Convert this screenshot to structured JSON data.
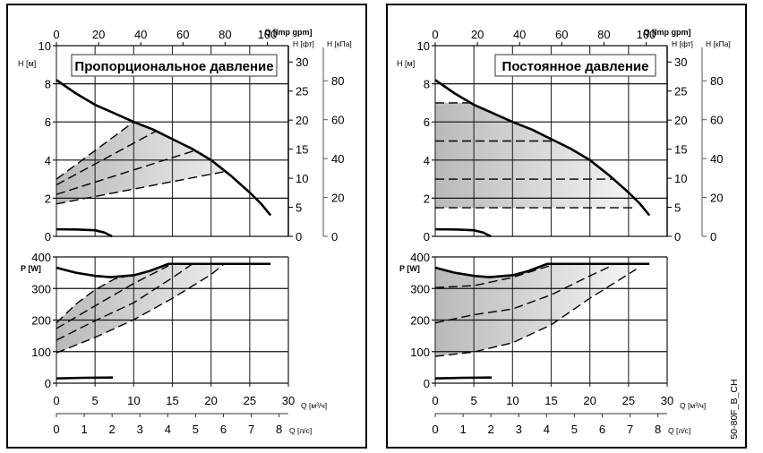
{
  "figure_label": "50-80F_B_CH",
  "chart_data": [
    {
      "type": "line",
      "mode": "proportional",
      "title": "Пропорциональное давление",
      "grid": true,
      "legend": "none",
      "gpm_axis": {
        "label": "Q [Imp gpm]",
        "ticks": [
          0,
          20,
          40,
          60,
          80,
          100
        ]
      },
      "flow_axis": {
        "label": "Q [м³/ч]",
        "xlim": [
          0,
          30
        ],
        "ticks": [
          0,
          5,
          10,
          15,
          20,
          25,
          30
        ]
      },
      "flow_ls_axis": {
        "label": "Q [л/с]",
        "ticks": [
          0,
          1,
          2,
          3,
          4,
          5,
          6,
          7,
          8
        ]
      },
      "head": {
        "ylabel": "H [м]",
        "ylim": [
          0,
          10
        ],
        "yticks": [
          0,
          2,
          4,
          6,
          8,
          10
        ],
        "ft_axis": {
          "label": "H [фт]",
          "ticks": [
            0,
            5,
            10,
            15,
            20,
            25,
            30
          ]
        },
        "kpa_axis": {
          "label": "H [кПа]",
          "ticks": [
            0,
            20,
            40,
            60,
            80
          ]
        },
        "operating_area": [
          [
            0,
            3.0
          ],
          [
            10,
            6.0
          ],
          [
            12.5,
            5.6
          ],
          [
            15,
            5.1
          ],
          [
            17.5,
            4.6
          ],
          [
            20,
            4.0
          ],
          [
            21.8,
            3.4
          ],
          [
            0,
            1.7
          ]
        ],
        "series": [
          {
            "name": "max-curve",
            "style": "solid",
            "points": [
              [
                0,
                8.2
              ],
              [
                2.5,
                7.5
              ],
              [
                5,
                6.9
              ],
              [
                7.5,
                6.45
              ],
              [
                10,
                6.0
              ],
              [
                12.5,
                5.6
              ],
              [
                15,
                5.1
              ],
              [
                17.5,
                4.6
              ],
              [
                20,
                4.0
              ],
              [
                22.5,
                3.2
              ],
              [
                25,
                2.3
              ],
              [
                26.5,
                1.7
              ],
              [
                27.7,
                1.1
              ]
            ]
          },
          {
            "name": "min-curve",
            "style": "solid",
            "points": [
              [
                0,
                0.37
              ],
              [
                2.5,
                0.36
              ],
              [
                5,
                0.32
              ],
              [
                6.2,
                0.2
              ],
              [
                7.2,
                0
              ]
            ]
          },
          {
            "name": "control-curve-1",
            "style": "dashed",
            "points": [
              [
                0,
                3.0
              ],
              [
                10,
                6.0
              ]
            ]
          },
          {
            "name": "control-curve-2",
            "style": "dashed",
            "points": [
              [
                0,
                2.7
              ],
              [
                12.8,
                5.5
              ]
            ]
          },
          {
            "name": "control-curve-3",
            "style": "dashed",
            "points": [
              [
                0,
                2.2
              ],
              [
                17.9,
                4.5
              ]
            ]
          },
          {
            "name": "control-curve-4",
            "style": "dashed",
            "points": [
              [
                0,
                1.7
              ],
              [
                21.8,
                3.4
              ]
            ]
          }
        ]
      },
      "power": {
        "ylabel": "P [W]",
        "ylim": [
          0,
          400
        ],
        "yticks": [
          0,
          100,
          200,
          300,
          400
        ],
        "operating_area": [
          [
            0,
            191
          ],
          [
            2.5,
            250
          ],
          [
            5,
            296
          ],
          [
            7.5,
            330
          ],
          [
            10,
            344
          ],
          [
            12,
            355
          ],
          [
            14.5,
            378
          ],
          [
            21.7,
            378
          ],
          [
            20,
            344
          ],
          [
            15,
            269
          ],
          [
            10,
            201
          ],
          [
            5,
            145
          ],
          [
            0,
            96
          ]
        ],
        "series": [
          {
            "name": "max-curve",
            "style": "solid",
            "points": [
              [
                0,
                366
              ],
              [
                2.5,
                350
              ],
              [
                5,
                340
              ],
              [
                7,
                336
              ],
              [
                10,
                342
              ],
              [
                12,
                355
              ],
              [
                14.5,
                378
              ],
              [
                27.7,
                378
              ]
            ]
          },
          {
            "name": "min-curve",
            "style": "solid",
            "points": [
              [
                0,
                15
              ],
              [
                3.5,
                17
              ],
              [
                7.3,
                18
              ]
            ]
          },
          {
            "name": "control-curve-1",
            "style": "dashed",
            "points": [
              [
                0,
                191
              ],
              [
                2.5,
                250
              ],
              [
                5,
                296
              ],
              [
                7.5,
                330
              ],
              [
                10,
                344
              ]
            ]
          },
          {
            "name": "control-curve-2",
            "style": "dashed",
            "points": [
              [
                0,
                173
              ],
              [
                5,
                245
              ],
              [
                10,
                316
              ],
              [
                14.5,
                372
              ]
            ]
          },
          {
            "name": "control-curve-3",
            "style": "dashed",
            "points": [
              [
                0,
                136
              ],
              [
                5,
                198
              ],
              [
                10,
                255
              ],
              [
                15,
                334
              ],
              [
                17.6,
                378
              ]
            ]
          },
          {
            "name": "control-curve-4",
            "style": "dashed",
            "points": [
              [
                0,
                96
              ],
              [
                5,
                145
              ],
              [
                10,
                201
              ],
              [
                15,
                269
              ],
              [
                20,
                344
              ],
              [
                21.7,
                378
              ]
            ]
          }
        ]
      }
    },
    {
      "type": "line",
      "mode": "constant",
      "title": "Постоянное давление",
      "grid": true,
      "legend": "none",
      "gpm_axis": {
        "label": "Q [Imp gpm]",
        "ticks": [
          0,
          20,
          40,
          60,
          80,
          100
        ]
      },
      "flow_axis": {
        "label": "Q [м³/ч]",
        "xlim": [
          0,
          30
        ],
        "ticks": [
          0,
          5,
          10,
          15,
          20,
          25,
          30
        ]
      },
      "flow_ls_axis": {
        "label": "Q [л/с]",
        "ticks": [
          0,
          1,
          2,
          3,
          4,
          5,
          6,
          7,
          8
        ]
      },
      "head": {
        "ylabel": "H [м]",
        "ylim": [
          0,
          10
        ],
        "yticks": [
          0,
          2,
          4,
          6,
          8,
          10
        ],
        "ft_axis": {
          "label": "H [фт]",
          "ticks": [
            0,
            5,
            10,
            15,
            20,
            25,
            30
          ]
        },
        "kpa_axis": {
          "label": "H [кПа]",
          "ticks": [
            0,
            20,
            40,
            60,
            80
          ]
        },
        "operating_area": [
          [
            0,
            7
          ],
          [
            4.5,
            7
          ],
          [
            5,
            6.9
          ],
          [
            7.5,
            6.45
          ],
          [
            10,
            6.0
          ],
          [
            12.5,
            5.6
          ],
          [
            15,
            5.1
          ],
          [
            17.5,
            4.6
          ],
          [
            20,
            4.0
          ],
          [
            22.5,
            3.2
          ],
          [
            25,
            2.3
          ],
          [
            26,
            1.9
          ],
          [
            26,
            1.5
          ],
          [
            0,
            1.5
          ]
        ],
        "series": [
          {
            "name": "max-curve",
            "style": "solid",
            "points": [
              [
                0,
                8.2
              ],
              [
                2.5,
                7.5
              ],
              [
                5,
                6.9
              ],
              [
                7.5,
                6.45
              ],
              [
                10,
                6.0
              ],
              [
                12.5,
                5.6
              ],
              [
                15,
                5.1
              ],
              [
                17.5,
                4.6
              ],
              [
                20,
                4.0
              ],
              [
                22.5,
                3.2
              ],
              [
                25,
                2.3
              ],
              [
                26.5,
                1.7
              ],
              [
                27.7,
                1.1
              ]
            ]
          },
          {
            "name": "min-curve",
            "style": "solid",
            "points": [
              [
                0,
                0.37
              ],
              [
                2.5,
                0.36
              ],
              [
                5,
                0.32
              ],
              [
                6.2,
                0.2
              ],
              [
                7.2,
                0
              ]
            ]
          },
          {
            "name": "control-curve-7m",
            "style": "dashed",
            "points": [
              [
                0,
                7
              ],
              [
                4.5,
                7
              ]
            ]
          },
          {
            "name": "control-curve-5m",
            "style": "dashed",
            "points": [
              [
                0,
                5
              ],
              [
                15.2,
                5
              ]
            ]
          },
          {
            "name": "control-curve-3m",
            "style": "dashed",
            "points": [
              [
                0,
                3
              ],
              [
                23,
                3
              ]
            ]
          },
          {
            "name": "control-curve-1.5m",
            "style": "dashed",
            "points": [
              [
                0,
                1.5
              ],
              [
                26,
                1.5
              ]
            ]
          }
        ]
      },
      "power": {
        "ylabel": "P [W]",
        "ylim": [
          0,
          400
        ],
        "yticks": [
          0,
          100,
          200,
          300,
          400
        ],
        "operating_area": [
          [
            0,
            366
          ],
          [
            2.5,
            350
          ],
          [
            5,
            340
          ],
          [
            7,
            336
          ],
          [
            10,
            342
          ],
          [
            12,
            355
          ],
          [
            14.5,
            378
          ],
          [
            26,
            378
          ],
          [
            26,
            361
          ],
          [
            20,
            269
          ],
          [
            15,
            185
          ],
          [
            10,
            128
          ],
          [
            5,
            99
          ],
          [
            0,
            85
          ]
        ],
        "series": [
          {
            "name": "max-curve",
            "style": "solid",
            "points": [
              [
                0,
                366
              ],
              [
                2.5,
                350
              ],
              [
                5,
                340
              ],
              [
                7,
                336
              ],
              [
                10,
                342
              ],
              [
                12,
                355
              ],
              [
                14.5,
                378
              ],
              [
                27.7,
                378
              ]
            ]
          },
          {
            "name": "min-curve",
            "style": "solid",
            "points": [
              [
                0,
                15
              ],
              [
                3.5,
                17
              ],
              [
                7.3,
                18
              ]
            ]
          },
          {
            "name": "control-curve-a",
            "style": "dashed",
            "points": [
              [
                0,
                303
              ],
              [
                5,
                309
              ],
              [
                10,
                335
              ],
              [
                14.8,
                372
              ]
            ]
          },
          {
            "name": "control-curve-b",
            "style": "dashed",
            "points": [
              [
                0,
                191
              ],
              [
                5,
                217
              ],
              [
                10,
                235
              ],
              [
                15,
                280
              ],
              [
                20,
                340
              ],
              [
                23,
                374
              ]
            ]
          },
          {
            "name": "control-curve-c",
            "style": "dashed",
            "points": [
              [
                0,
                85
              ],
              [
                5,
                99
              ],
              [
                10,
                128
              ],
              [
                15,
                185
              ],
              [
                20,
                269
              ],
              [
                26,
                361
              ]
            ]
          }
        ]
      }
    }
  ]
}
